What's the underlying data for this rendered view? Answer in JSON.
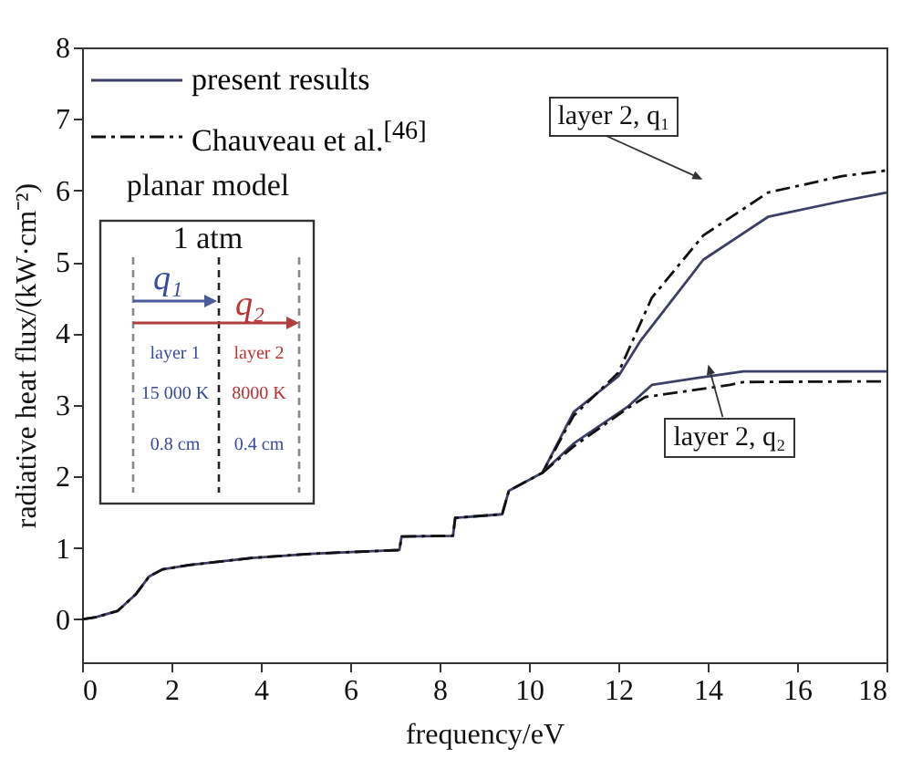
{
  "chart_data": {
    "type": "line",
    "xlabel": "frequency/eV",
    "ylabel": "radiative heat flux/(kW·cm⁻²)",
    "xlim": [
      0,
      18
    ],
    "xticks": [
      0,
      2,
      4,
      6,
      8,
      10,
      12,
      14,
      16,
      18
    ],
    "ylim": [
      -0.6,
      8
    ],
    "yticks": [
      0,
      1,
      2,
      3,
      4,
      5,
      6,
      7,
      8
    ],
    "grid": false,
    "legend": "top left",
    "marker": "none",
    "series": [
      {
        "name": "present results",
        "color": "#3c3f66",
        "line_style": "solid",
        "x": [
          0,
          0.3,
          0.8,
          1.2,
          1.5,
          1.8,
          2.4,
          3.8,
          5.2,
          7.1,
          7.15,
          8.3,
          8.35,
          9.4,
          9.55,
          10.3,
          11.0,
          12.0,
          12.5,
          13.9,
          15.35,
          17,
          18
        ],
        "values": [
          0,
          0.03,
          0.12,
          0.35,
          0.6,
          0.7,
          0.76,
          0.86,
          0.92,
          0.97,
          1.16,
          1.17,
          1.42,
          1.47,
          1.8,
          2.05,
          2.9,
          3.4,
          3.9,
          5.03,
          5.63,
          5.85,
          5.97
        ]
      },
      {
        "name": "Chauveau et al.$^{[46]}$",
        "color": "#111111",
        "line_style": "dashed",
        "x": [
          0,
          0.3,
          0.8,
          1.2,
          1.5,
          1.8,
          2.4,
          3.8,
          5.2,
          7.1,
          7.15,
          8.3,
          8.35,
          9.4,
          9.55,
          10.3,
          11.0,
          12.0,
          12.75,
          13.9,
          15.35,
          17,
          18
        ],
        "values": [
          0,
          0.03,
          0.12,
          0.35,
          0.6,
          0.7,
          0.76,
          0.86,
          0.92,
          0.97,
          1.16,
          1.17,
          1.42,
          1.47,
          1.8,
          2.05,
          2.85,
          3.45,
          4.5,
          5.37,
          5.97,
          6.2,
          6.28
        ]
      },
      {
        "color": "#3c3f66",
        "line_style": "solid",
        "x": [
          10.3,
          11.0,
          12.2,
          12.75,
          13.9,
          14.8,
          18
        ],
        "values": [
          2.05,
          2.46,
          2.97,
          3.28,
          3.39,
          3.47,
          3.47
        ]
      },
      {
        "color": "#111111",
        "line_style": "dashed",
        "x": [
          10.3,
          11.0,
          12.2,
          12.6,
          14.5,
          14.8,
          18
        ],
        "values": [
          2.05,
          2.42,
          2.95,
          3.11,
          3.28,
          3.32,
          3.33
        ]
      }
    ],
    "annotations": [
      "layer 2, q₁",
      "layer 2, q₂",
      "planar model",
      "1 atm",
      "q₁",
      "q₂",
      "layer 1",
      "layer 2",
      "15 000 K",
      "8000 K",
      "0.8 cm",
      "0.4 cm"
    ]
  }
}
